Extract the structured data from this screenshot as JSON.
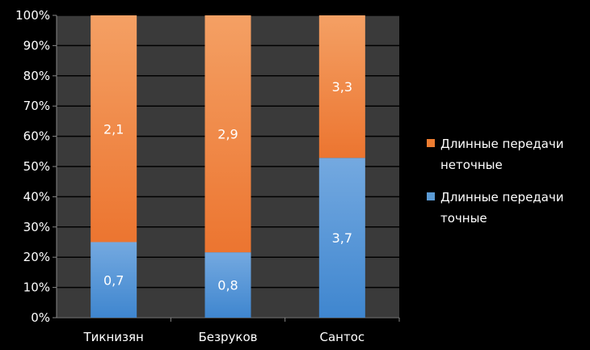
{
  "chart_data": {
    "type": "bar",
    "stacked": true,
    "normalized": true,
    "categories": [
      "Тикнизян",
      "Безруков",
      "Сантос"
    ],
    "series": [
      {
        "name": "Длинные передачи точные",
        "values": [
          0.7,
          0.8,
          3.7
        ],
        "labels": [
          "0,7",
          "0,8",
          "3,7"
        ],
        "color": "#5b9bd5"
      },
      {
        "name": "Длинные передачи неточные",
        "values": [
          2.1,
          2.9,
          3.3
        ],
        "labels": [
          "2,1",
          "2,9",
          "3,3"
        ],
        "color": "#ed7d31"
      }
    ],
    "yticks": [
      "0%",
      "10%",
      "20%",
      "30%",
      "40%",
      "50%",
      "60%",
      "70%",
      "80%",
      "90%",
      "100%"
    ],
    "ylim": [
      0,
      100
    ],
    "grid": true,
    "legend_position": "right",
    "legend": [
      {
        "lines": [
          "Длинные передачи",
          "неточные"
        ],
        "color": "#ed7d31"
      },
      {
        "lines": [
          "Длинные передачи",
          "точные"
        ],
        "color": "#5b9bd5"
      }
    ],
    "colors": {
      "background": "#000000",
      "plot_area": "#3a3a3a",
      "grid": "#000000",
      "text": "#ffffff"
    }
  }
}
